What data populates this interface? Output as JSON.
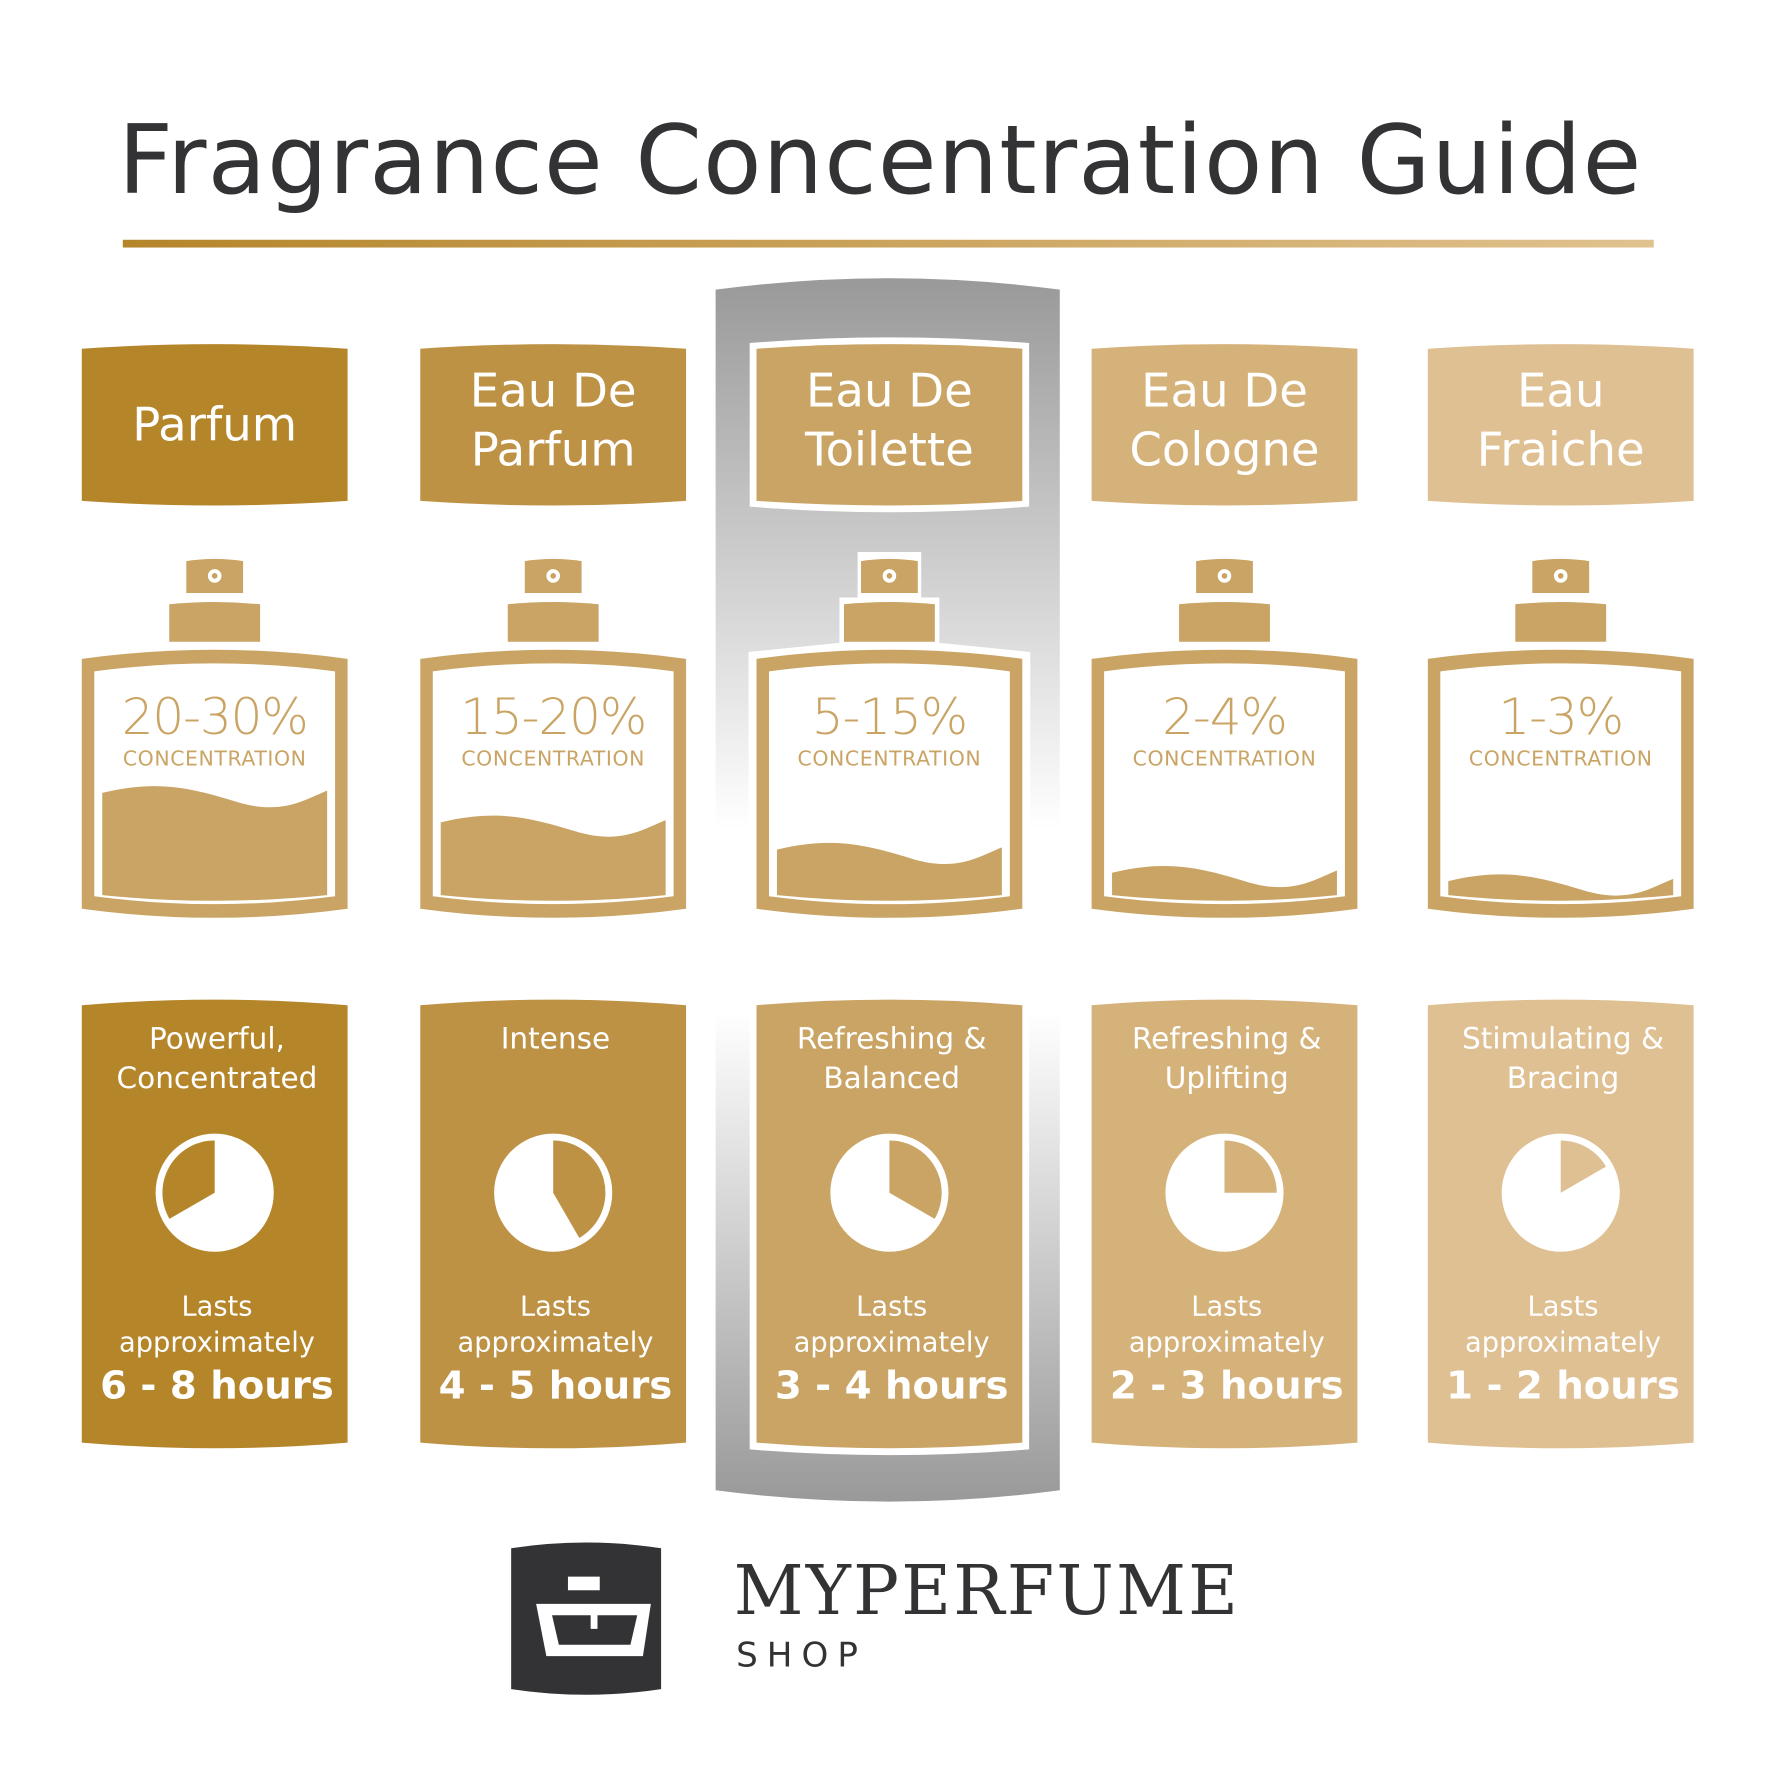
{
  "title": "Fragrance Concentration Guide",
  "colors": {
    "dark": "#333336",
    "bottle": "#C9A464",
    "rule_start": "#B5852A",
    "rule_end": "#E0C28F",
    "highlight_top": "#999999",
    "highlight_bottom": "#ffffff"
  },
  "highlighted_index": 2,
  "columns": [
    {
      "name": "Parfum",
      "label": [
        "Parfum"
      ],
      "percent": "20-30%",
      "concentration": "CONCENTRATION",
      "description": [
        "Powerful,",
        "Concentrated"
      ],
      "lasts": [
        "Lasts",
        "approximately"
      ],
      "hours": "6 - 8 hours",
      "color": "#B5852A",
      "fill_level": 0.47,
      "pie_gold_from_hour": 8,
      "pie_gold_to_hour": 12
    },
    {
      "name": "Eau De Parfum",
      "label": [
        "Eau De",
        "Parfum"
      ],
      "percent": "15-20%",
      "concentration": "CONCENTRATION",
      "description": [
        "Intense"
      ],
      "lasts": [
        "Lasts",
        "approximately"
      ],
      "hours": "4 - 5 hours",
      "color": "#BE9245",
      "fill_level": 0.33,
      "pie_gold_from_hour": 0,
      "pie_gold_to_hour": 5
    },
    {
      "name": "Eau De Toilette",
      "label": [
        "Eau De",
        "Toilette"
      ],
      "percent": "5-15%",
      "concentration": "CONCENTRATION",
      "description": [
        "Refreshing &",
        "Balanced"
      ],
      "lasts": [
        "Lasts",
        "approximately"
      ],
      "hours": "3 - 4 hours",
      "color": "#C9A464",
      "fill_level": 0.2,
      "pie_gold_from_hour": 0,
      "pie_gold_to_hour": 4
    },
    {
      "name": "Eau De Cologne",
      "label": [
        "Eau De",
        "Cologne"
      ],
      "percent": "2-4%",
      "concentration": "CONCENTRATION",
      "description": [
        "Refreshing &",
        "Uplifting"
      ],
      "lasts": [
        "Lasts",
        "approximately"
      ],
      "hours": "2 - 3 hours",
      "color": "#D6B27B",
      "fill_level": 0.09,
      "pie_gold_from_hour": 0,
      "pie_gold_to_hour": 3
    },
    {
      "name": "Eau Fraiche",
      "label": [
        "Eau",
        "Fraiche"
      ],
      "percent": "1-3%",
      "concentration": "CONCENTRATION",
      "description": [
        "Stimulating &",
        "Bracing"
      ],
      "lasts": [
        "Lasts",
        "approximately"
      ],
      "hours": "1 - 2 hours",
      "color": "#DFC093",
      "fill_level": 0.05,
      "pie_gold_from_hour": 0,
      "pie_gold_to_hour": 2
    }
  ],
  "logo": {
    "brand": "MYPERFUME",
    "sub": "SHOP"
  }
}
